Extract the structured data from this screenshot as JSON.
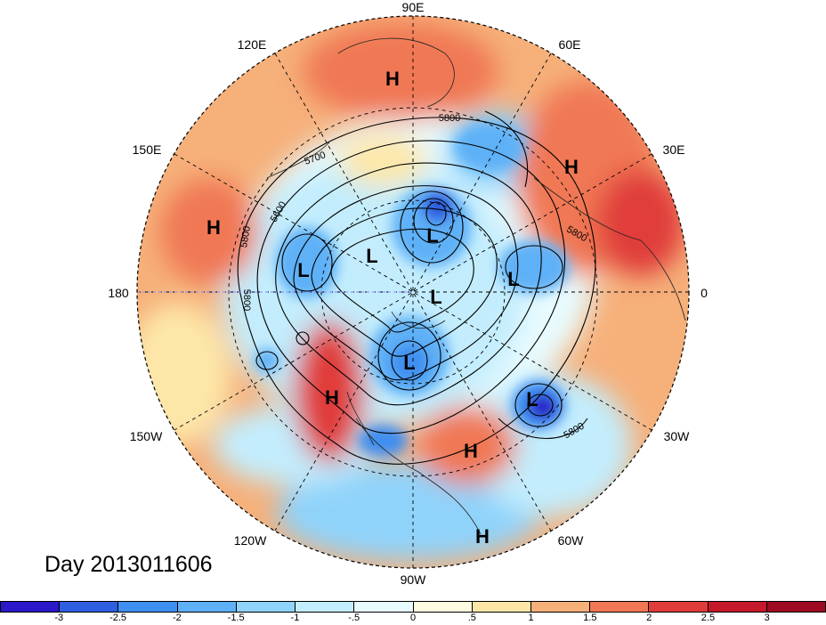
{
  "day_label": "Day 2013011606",
  "longitude_labels": {
    "e90": "90E",
    "e60": "60E",
    "e30": "30E",
    "zero": "0",
    "w30": "30W",
    "w60": "60W",
    "w90": "90W",
    "w120": "120W",
    "w150": "150W",
    "d180": "180",
    "e150": "150E",
    "e120": "120E"
  },
  "contour_labels": [
    "5800",
    "5700",
    "5600",
    "5800",
    "5800",
    "5800",
    "5800"
  ],
  "pressure_centers": [
    {
      "type": "H",
      "region": "east-siberia"
    },
    {
      "type": "H",
      "region": "europe"
    },
    {
      "type": "H",
      "region": "north-pacific"
    },
    {
      "type": "H",
      "region": "west-north-america"
    },
    {
      "type": "H",
      "region": "east-usa"
    },
    {
      "type": "H",
      "region": "caribbean"
    },
    {
      "type": "L",
      "region": "bering"
    },
    {
      "type": "L",
      "region": "alaska"
    },
    {
      "type": "L",
      "region": "kara-sea"
    },
    {
      "type": "L",
      "region": "pole"
    },
    {
      "type": "L",
      "region": "greenland-sea"
    },
    {
      "type": "L",
      "region": "hudson-bay"
    },
    {
      "type": "L",
      "region": "north-atlantic"
    }
  ],
  "colorbar": {
    "ticks": [
      "-3",
      "-2.5",
      "-2",
      "-1.5",
      "-1",
      "-.5",
      "0",
      ".5",
      "1",
      "1.5",
      "2",
      "2.5",
      "3"
    ],
    "colors": [
      "#2b18c8",
      "#2f5fe0",
      "#3f8ff0",
      "#5eb1f7",
      "#8fd3fb",
      "#c3edfd",
      "#e8fbfe",
      "#fefbe0",
      "#fde7a8",
      "#f6b07a",
      "#f07854",
      "#e03c3a",
      "#c5182a",
      "#9e0a22"
    ]
  }
}
